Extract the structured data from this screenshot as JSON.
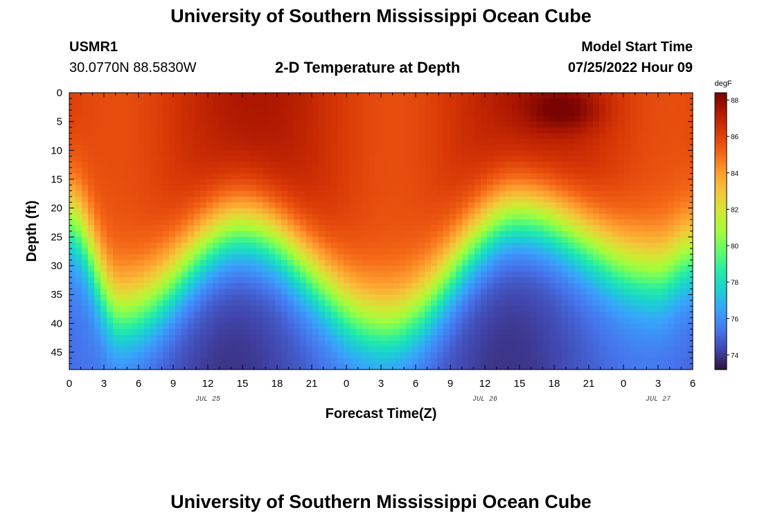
{
  "header": {
    "title": "University of Southern Mississippi Ocean Cube",
    "station_id": "USMR1",
    "coordinates": "30.0770N  88.5830W",
    "plot_title": "2-D Temperature at Depth",
    "model_label": "Model Start Time",
    "model_time": "07/25/2022 Hour 09",
    "footer_title": "University of Southern Mississippi Ocean Cube"
  },
  "chart_data": {
    "type": "heatmap",
    "xlabel": "Forecast Time(Z)",
    "ylabel": "Depth (ft)",
    "x_tick_labels": [
      "0",
      "3",
      "6",
      "9",
      "12",
      "15",
      "18",
      "21",
      "0",
      "3",
      "6",
      "9",
      "12",
      "15",
      "18",
      "21",
      "0",
      "3",
      "6"
    ],
    "date_labels": [
      {
        "label": "JUL 25",
        "hour_index": 12
      },
      {
        "label": "JUL 26",
        "hour_index": 36
      },
      {
        "label": "JUL 27",
        "hour_index": 51
      }
    ],
    "x_range_hours": [
      0,
      54
    ],
    "y_tick_labels": [
      "0",
      "5",
      "10",
      "15",
      "20",
      "25",
      "30",
      "35",
      "40",
      "45"
    ],
    "y_tick_values": [
      0,
      5,
      10,
      15,
      20,
      25,
      30,
      35,
      40,
      45
    ],
    "ylim": [
      0,
      48
    ],
    "y_inverted": true,
    "colorbar": {
      "unit": "degF",
      "min": 73.2,
      "max": 88.4,
      "tick_labels": [
        "74",
        "76",
        "78",
        "80",
        "82",
        "84",
        "86",
        "88"
      ],
      "tick_values": [
        74,
        76,
        78,
        80,
        82,
        84,
        86,
        88
      ],
      "colormap": [
        "#30123b",
        "#4145ab",
        "#4675ed",
        "#39a2fc",
        "#1bcfd4",
        "#24eca6",
        "#61fc6c",
        "#a4fc3b",
        "#d1e834",
        "#f3c63a",
        "#fe9b2d",
        "#f36315",
        "#d93806",
        "#b11901",
        "#7a0402"
      ]
    },
    "description_of_field": {
      "surface_temp_range": [
        86,
        88.2
      ],
      "bottom_temp_range": [
        73.5,
        75.5
      ],
      "thermocline_minima_hours": [
        4.5,
        27.5,
        51
      ],
      "thermocline_maxima_hours": [
        15,
        39
      ],
      "warm_core": {
        "hour": 43,
        "depth_ft": 3,
        "temp": 88.3
      }
    }
  }
}
